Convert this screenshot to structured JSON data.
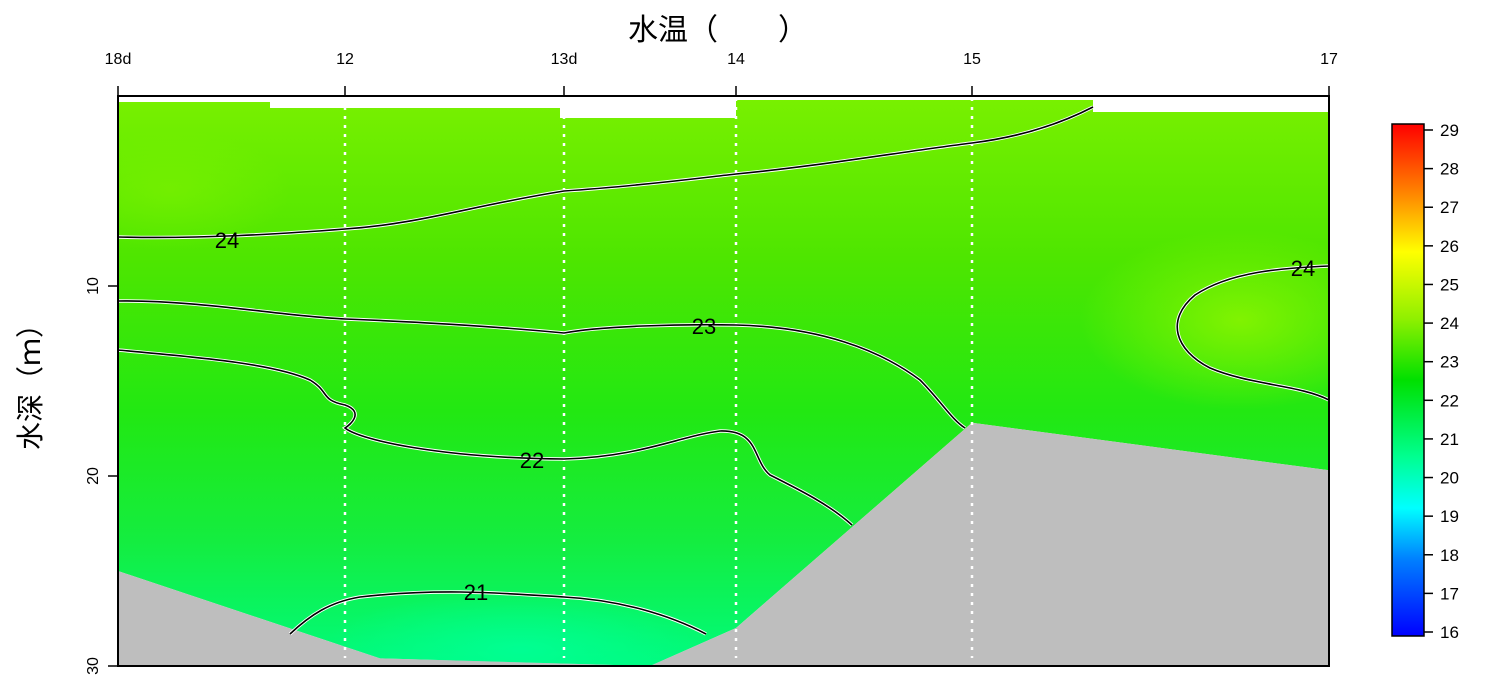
{
  "chart_data": {
    "type": "heatmap",
    "title": "水温（　　）",
    "xlabel": "",
    "ylabel": "水深（ｍ）",
    "x_ticks": [
      "18d",
      "12",
      "13d",
      "14",
      "15",
      "17"
    ],
    "x_values": [
      0,
      1,
      2,
      3,
      4,
      5
    ],
    "y_ticks": [
      10,
      20,
      30
    ],
    "ylim": [
      0,
      30
    ],
    "y_reversed": true,
    "grid": "vertical dotted lines at stations",
    "colorbar": {
      "min": 16,
      "max": 29,
      "ticks": [
        16,
        17,
        18,
        19,
        20,
        21,
        22,
        23,
        24,
        25,
        26,
        27,
        28,
        29
      ],
      "palette": [
        "#0000ff",
        "#0080ff",
        "#00ffff",
        "#00ff80",
        "#00ff00",
        "#80ff00",
        "#ffff00",
        "#ff8000",
        "#ff0000"
      ]
    },
    "contour_labels": [
      "24",
      "24",
      "23",
      "22",
      "21"
    ],
    "bottom_profile_depth_m": [
      25,
      29.6,
      28,
      17.2,
      19.7
    ]
  }
}
